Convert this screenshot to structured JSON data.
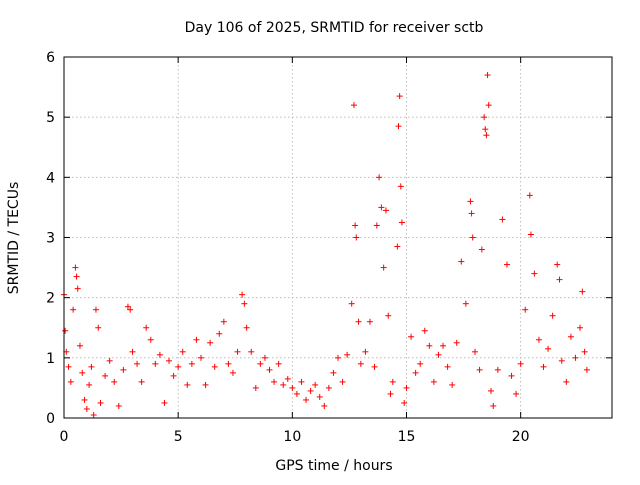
{
  "chart_data": {
    "type": "scatter",
    "title": "Day 106 of 2025, SRMTID for receiver sctb",
    "xlabel": "GPS time / hours",
    "ylabel": "SRMTID / TECUs",
    "xlim": [
      0,
      24
    ],
    "ylim": [
      0,
      6
    ],
    "xticks": [
      0,
      5,
      10,
      15,
      20
    ],
    "yticks": [
      0,
      1,
      2,
      3,
      4,
      5,
      6
    ],
    "grid": true,
    "marker": "+",
    "color": "#ff0000",
    "series": [
      {
        "name": "SRMTID",
        "points": [
          [
            0.0,
            2.05
          ],
          [
            0.05,
            1.45
          ],
          [
            0.1,
            1.1
          ],
          [
            0.2,
            0.85
          ],
          [
            0.3,
            0.6
          ],
          [
            0.4,
            1.8
          ],
          [
            0.5,
            2.5
          ],
          [
            0.55,
            2.35
          ],
          [
            0.6,
            2.15
          ],
          [
            0.7,
            1.2
          ],
          [
            0.8,
            0.75
          ],
          [
            0.9,
            0.3
          ],
          [
            1.0,
            0.15
          ],
          [
            1.1,
            0.55
          ],
          [
            1.2,
            0.85
          ],
          [
            1.3,
            0.05
          ],
          [
            1.4,
            1.8
          ],
          [
            1.5,
            1.5
          ],
          [
            1.6,
            0.25
          ],
          [
            1.8,
            0.7
          ],
          [
            2.0,
            0.95
          ],
          [
            2.2,
            0.6
          ],
          [
            2.4,
            0.2
          ],
          [
            2.6,
            0.8
          ],
          [
            2.8,
            1.85
          ],
          [
            2.9,
            1.8
          ],
          [
            3.0,
            1.1
          ],
          [
            3.2,
            0.9
          ],
          [
            3.4,
            0.6
          ],
          [
            3.6,
            1.5
          ],
          [
            3.8,
            1.3
          ],
          [
            4.0,
            0.9
          ],
          [
            4.2,
            1.05
          ],
          [
            4.4,
            0.25
          ],
          [
            4.6,
            0.95
          ],
          [
            4.8,
            0.7
          ],
          [
            5.0,
            0.85
          ],
          [
            5.2,
            1.1
          ],
          [
            5.4,
            0.55
          ],
          [
            5.6,
            0.9
          ],
          [
            5.8,
            1.3
          ],
          [
            6.0,
            1.0
          ],
          [
            6.2,
            0.55
          ],
          [
            6.4,
            1.25
          ],
          [
            6.6,
            0.85
          ],
          [
            6.8,
            1.4
          ],
          [
            7.0,
            1.6
          ],
          [
            7.2,
            0.9
          ],
          [
            7.4,
            0.75
          ],
          [
            7.6,
            1.1
          ],
          [
            7.8,
            2.05
          ],
          [
            7.9,
            1.9
          ],
          [
            8.0,
            1.5
          ],
          [
            8.2,
            1.1
          ],
          [
            8.4,
            0.5
          ],
          [
            8.6,
            0.9
          ],
          [
            8.8,
            1.0
          ],
          [
            9.0,
            0.8
          ],
          [
            9.2,
            0.6
          ],
          [
            9.4,
            0.9
          ],
          [
            9.6,
            0.55
          ],
          [
            9.8,
            0.65
          ],
          [
            10.0,
            0.5
          ],
          [
            10.2,
            0.4
          ],
          [
            10.4,
            0.6
          ],
          [
            10.6,
            0.3
          ],
          [
            10.8,
            0.45
          ],
          [
            11.0,
            0.55
          ],
          [
            11.2,
            0.35
          ],
          [
            11.4,
            0.2
          ],
          [
            11.6,
            0.5
          ],
          [
            11.8,
            0.75
          ],
          [
            12.0,
            1.0
          ],
          [
            12.2,
            0.6
          ],
          [
            12.4,
            1.05
          ],
          [
            12.6,
            1.9
          ],
          [
            12.7,
            5.2
          ],
          [
            12.75,
            3.2
          ],
          [
            12.8,
            3.0
          ],
          [
            12.9,
            1.6
          ],
          [
            13.0,
            0.9
          ],
          [
            13.2,
            1.1
          ],
          [
            13.4,
            1.6
          ],
          [
            13.6,
            0.85
          ],
          [
            13.7,
            3.2
          ],
          [
            13.8,
            4.0
          ],
          [
            13.9,
            3.5
          ],
          [
            14.0,
            2.5
          ],
          [
            14.1,
            3.45
          ],
          [
            14.2,
            1.7
          ],
          [
            14.3,
            0.4
          ],
          [
            14.4,
            0.6
          ],
          [
            14.6,
            2.85
          ],
          [
            14.65,
            4.85
          ],
          [
            14.7,
            5.35
          ],
          [
            14.75,
            3.85
          ],
          [
            14.8,
            3.25
          ],
          [
            14.9,
            0.25
          ],
          [
            15.0,
            0.5
          ],
          [
            15.2,
            1.35
          ],
          [
            15.4,
            0.75
          ],
          [
            15.6,
            0.9
          ],
          [
            15.8,
            1.45
          ],
          [
            16.0,
            1.2
          ],
          [
            16.2,
            0.6
          ],
          [
            16.4,
            1.05
          ],
          [
            16.6,
            1.2
          ],
          [
            16.8,
            0.85
          ],
          [
            17.0,
            0.55
          ],
          [
            17.2,
            1.25
          ],
          [
            17.4,
            2.6
          ],
          [
            17.6,
            1.9
          ],
          [
            17.8,
            3.6
          ],
          [
            17.85,
            3.4
          ],
          [
            17.9,
            3.0
          ],
          [
            18.0,
            1.1
          ],
          [
            18.2,
            0.8
          ],
          [
            18.3,
            2.8
          ],
          [
            18.4,
            5.0
          ],
          [
            18.45,
            4.8
          ],
          [
            18.5,
            4.7
          ],
          [
            18.55,
            5.7
          ],
          [
            18.6,
            5.2
          ],
          [
            18.7,
            0.45
          ],
          [
            18.8,
            0.2
          ],
          [
            19.0,
            0.8
          ],
          [
            19.2,
            3.3
          ],
          [
            19.4,
            2.55
          ],
          [
            19.6,
            0.7
          ],
          [
            19.8,
            0.4
          ],
          [
            20.0,
            0.9
          ],
          [
            20.2,
            1.8
          ],
          [
            20.4,
            3.7
          ],
          [
            20.45,
            3.05
          ],
          [
            20.6,
            2.4
          ],
          [
            20.8,
            1.3
          ],
          [
            21.0,
            0.85
          ],
          [
            21.2,
            1.15
          ],
          [
            21.4,
            1.7
          ],
          [
            21.6,
            2.55
          ],
          [
            21.7,
            2.3
          ],
          [
            21.8,
            0.95
          ],
          [
            22.0,
            0.6
          ],
          [
            22.2,
            1.35
          ],
          [
            22.4,
            1.0
          ],
          [
            22.6,
            1.5
          ],
          [
            22.7,
            2.1
          ],
          [
            22.8,
            1.1
          ],
          [
            22.9,
            0.8
          ]
        ]
      }
    ]
  }
}
